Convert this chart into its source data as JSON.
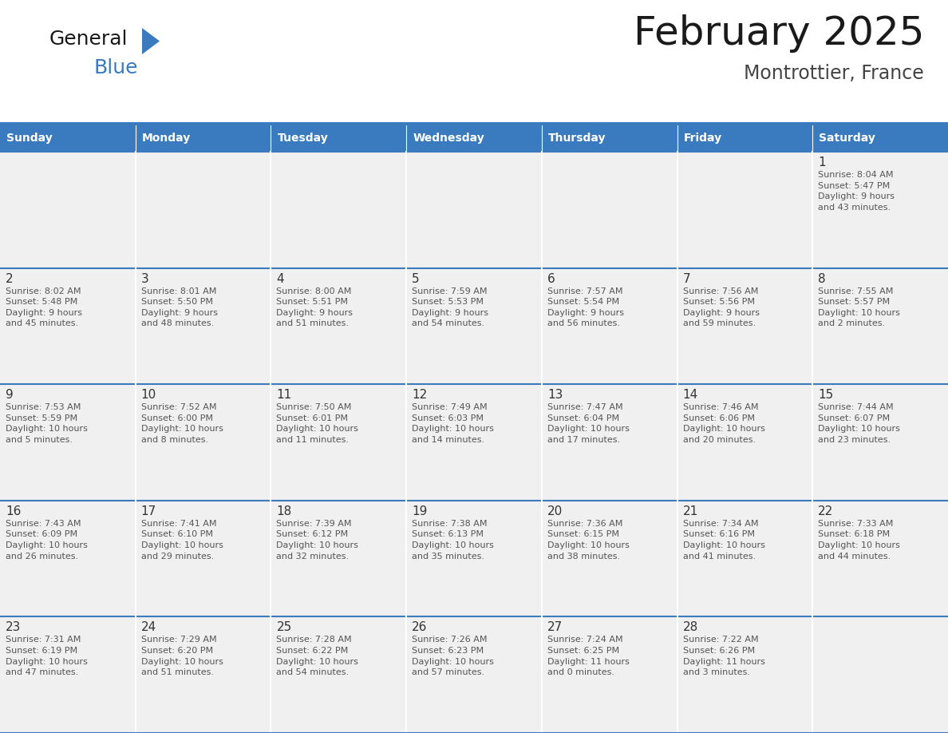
{
  "title": "February 2025",
  "subtitle": "Montrottier, France",
  "header_bg": "#3a7bbf",
  "header_text_color": "#ffffff",
  "cell_bg_light": "#f0f0f0",
  "border_color": "#3a7bbf",
  "text_color": "#333333",
  "day_names": [
    "Sunday",
    "Monday",
    "Tuesday",
    "Wednesday",
    "Thursday",
    "Friday",
    "Saturday"
  ],
  "days": [
    {
      "day": 1,
      "col": 6,
      "row": 0,
      "sunrise": "8:04 AM",
      "sunset": "5:47 PM",
      "daylight": "9 hours\nand 43 minutes."
    },
    {
      "day": 2,
      "col": 0,
      "row": 1,
      "sunrise": "8:02 AM",
      "sunset": "5:48 PM",
      "daylight": "9 hours\nand 45 minutes."
    },
    {
      "day": 3,
      "col": 1,
      "row": 1,
      "sunrise": "8:01 AM",
      "sunset": "5:50 PM",
      "daylight": "9 hours\nand 48 minutes."
    },
    {
      "day": 4,
      "col": 2,
      "row": 1,
      "sunrise": "8:00 AM",
      "sunset": "5:51 PM",
      "daylight": "9 hours\nand 51 minutes."
    },
    {
      "day": 5,
      "col": 3,
      "row": 1,
      "sunrise": "7:59 AM",
      "sunset": "5:53 PM",
      "daylight": "9 hours\nand 54 minutes."
    },
    {
      "day": 6,
      "col": 4,
      "row": 1,
      "sunrise": "7:57 AM",
      "sunset": "5:54 PM",
      "daylight": "9 hours\nand 56 minutes."
    },
    {
      "day": 7,
      "col": 5,
      "row": 1,
      "sunrise": "7:56 AM",
      "sunset": "5:56 PM",
      "daylight": "9 hours\nand 59 minutes."
    },
    {
      "day": 8,
      "col": 6,
      "row": 1,
      "sunrise": "7:55 AM",
      "sunset": "5:57 PM",
      "daylight": "10 hours\nand 2 minutes."
    },
    {
      "day": 9,
      "col": 0,
      "row": 2,
      "sunrise": "7:53 AM",
      "sunset": "5:59 PM",
      "daylight": "10 hours\nand 5 minutes."
    },
    {
      "day": 10,
      "col": 1,
      "row": 2,
      "sunrise": "7:52 AM",
      "sunset": "6:00 PM",
      "daylight": "10 hours\nand 8 minutes."
    },
    {
      "day": 11,
      "col": 2,
      "row": 2,
      "sunrise": "7:50 AM",
      "sunset": "6:01 PM",
      "daylight": "10 hours\nand 11 minutes."
    },
    {
      "day": 12,
      "col": 3,
      "row": 2,
      "sunrise": "7:49 AM",
      "sunset": "6:03 PM",
      "daylight": "10 hours\nand 14 minutes."
    },
    {
      "day": 13,
      "col": 4,
      "row": 2,
      "sunrise": "7:47 AM",
      "sunset": "6:04 PM",
      "daylight": "10 hours\nand 17 minutes."
    },
    {
      "day": 14,
      "col": 5,
      "row": 2,
      "sunrise": "7:46 AM",
      "sunset": "6:06 PM",
      "daylight": "10 hours\nand 20 minutes."
    },
    {
      "day": 15,
      "col": 6,
      "row": 2,
      "sunrise": "7:44 AM",
      "sunset": "6:07 PM",
      "daylight": "10 hours\nand 23 minutes."
    },
    {
      "day": 16,
      "col": 0,
      "row": 3,
      "sunrise": "7:43 AM",
      "sunset": "6:09 PM",
      "daylight": "10 hours\nand 26 minutes."
    },
    {
      "day": 17,
      "col": 1,
      "row": 3,
      "sunrise": "7:41 AM",
      "sunset": "6:10 PM",
      "daylight": "10 hours\nand 29 minutes."
    },
    {
      "day": 18,
      "col": 2,
      "row": 3,
      "sunrise": "7:39 AM",
      "sunset": "6:12 PM",
      "daylight": "10 hours\nand 32 minutes."
    },
    {
      "day": 19,
      "col": 3,
      "row": 3,
      "sunrise": "7:38 AM",
      "sunset": "6:13 PM",
      "daylight": "10 hours\nand 35 minutes."
    },
    {
      "day": 20,
      "col": 4,
      "row": 3,
      "sunrise": "7:36 AM",
      "sunset": "6:15 PM",
      "daylight": "10 hours\nand 38 minutes."
    },
    {
      "day": 21,
      "col": 5,
      "row": 3,
      "sunrise": "7:34 AM",
      "sunset": "6:16 PM",
      "daylight": "10 hours\nand 41 minutes."
    },
    {
      "day": 22,
      "col": 6,
      "row": 3,
      "sunrise": "7:33 AM",
      "sunset": "6:18 PM",
      "daylight": "10 hours\nand 44 minutes."
    },
    {
      "day": 23,
      "col": 0,
      "row": 4,
      "sunrise": "7:31 AM",
      "sunset": "6:19 PM",
      "daylight": "10 hours\nand 47 minutes."
    },
    {
      "day": 24,
      "col": 1,
      "row": 4,
      "sunrise": "7:29 AM",
      "sunset": "6:20 PM",
      "daylight": "10 hours\nand 51 minutes."
    },
    {
      "day": 25,
      "col": 2,
      "row": 4,
      "sunrise": "7:28 AM",
      "sunset": "6:22 PM",
      "daylight": "10 hours\nand 54 minutes."
    },
    {
      "day": 26,
      "col": 3,
      "row": 4,
      "sunrise": "7:26 AM",
      "sunset": "6:23 PM",
      "daylight": "10 hours\nand 57 minutes."
    },
    {
      "day": 27,
      "col": 4,
      "row": 4,
      "sunrise": "7:24 AM",
      "sunset": "6:25 PM",
      "daylight": "11 hours\nand 0 minutes."
    },
    {
      "day": 28,
      "col": 5,
      "row": 4,
      "sunrise": "7:22 AM",
      "sunset": "6:26 PM",
      "daylight": "11 hours\nand 3 minutes."
    }
  ],
  "num_rows": 5,
  "num_cols": 7,
  "logo_triangle_color": "#3a7bbf",
  "logo_blue_color": "#3a7bbf",
  "logo_general_color": "#1a1a1a"
}
